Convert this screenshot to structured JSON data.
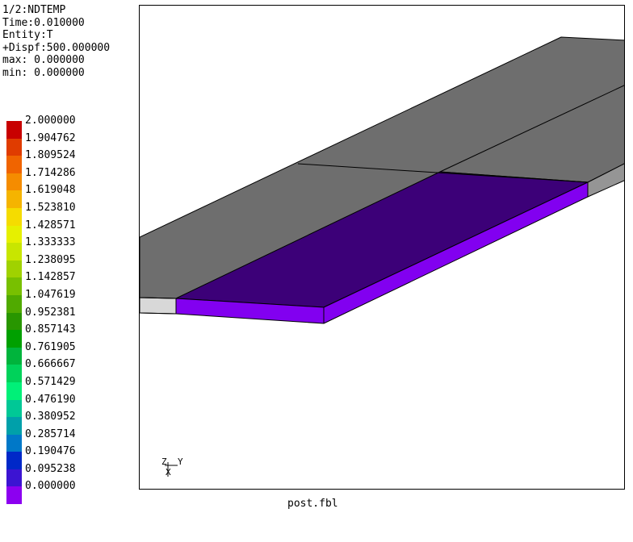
{
  "info": {
    "lines": [
      "1/2:NDTEMP",
      "Time:0.010000",
      "Entity:T",
      "+Dispf:500.000000",
      "max: 0.000000",
      "min: 0.000000"
    ]
  },
  "legend": {
    "entries": [
      {
        "label": "2.000000",
        "color": "#c80000"
      },
      {
        "label": "1.904762",
        "color": "#e03c00"
      },
      {
        "label": "1.809524",
        "color": "#f06400"
      },
      {
        "label": "1.714286",
        "color": "#f58c00"
      },
      {
        "label": "1.619048",
        "color": "#f5b400"
      },
      {
        "label": "1.523810",
        "color": "#f5dc00"
      },
      {
        "label": "1.428571",
        "color": "#e6f000"
      },
      {
        "label": "1.333333",
        "color": "#c8e600"
      },
      {
        "label": "1.238095",
        "color": "#a0d200"
      },
      {
        "label": "1.142857",
        "color": "#78c000"
      },
      {
        "label": "1.047619",
        "color": "#50aa00"
      },
      {
        "label": "0.952381",
        "color": "#289600"
      },
      {
        "label": "0.857143",
        "color": "#00a000"
      },
      {
        "label": "0.761905",
        "color": "#00b43c"
      },
      {
        "label": "0.666667",
        "color": "#00d25a"
      },
      {
        "label": "0.571429",
        "color": "#00f078"
      },
      {
        "label": "0.476190",
        "color": "#00c896"
      },
      {
        "label": "0.380952",
        "color": "#00a0aa"
      },
      {
        "label": "0.285714",
        "color": "#0078c8"
      },
      {
        "label": "0.190476",
        "color": "#0028c8"
      },
      {
        "label": "0.095238",
        "color": "#3c14d2"
      },
      {
        "label": "0.000000",
        "color": "#8c00f0"
      }
    ]
  },
  "viewport": {
    "mesh_color": "#6e6e6e",
    "mesh_edge_color": "#959595",
    "light_edge_color": "#d8d8d8",
    "highlight_top_color": "#3c0078",
    "highlight_side_color": "#8200f0",
    "triad": {
      "z": "Z",
      "y": "Y",
      "x": "X"
    }
  },
  "footer": {
    "filename": "post.fbl"
  }
}
